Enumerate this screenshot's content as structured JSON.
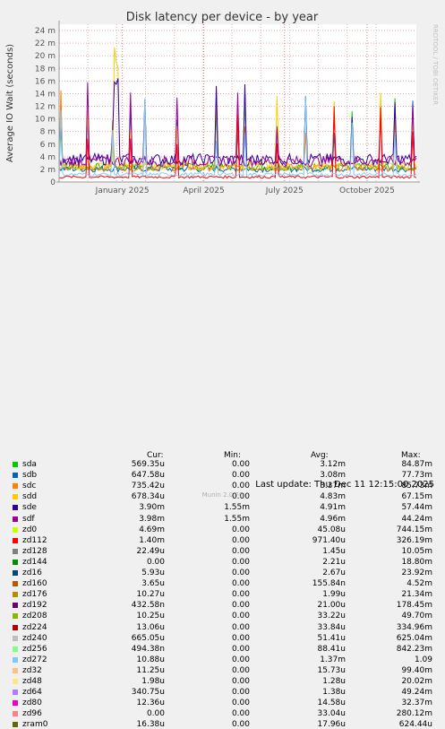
{
  "chart_data": {
    "type": "line",
    "title": "Disk latency per device - by year",
    "ylabel": "Average IO Wait (seconds)",
    "ylim": [
      0,
      25
    ],
    "y_ticks": [
      "0",
      "2 m",
      "4 m",
      "6 m",
      "8 m",
      "10 m",
      "12 m",
      "14 m",
      "16 m",
      "18 m",
      "20 m",
      "22 m",
      "24 m"
    ],
    "x_tick_labels": [
      "January 2025",
      "April 2025",
      "July 2025",
      "October 2025"
    ],
    "watermark": "RRDTOOL / TOBI OETIKER",
    "grid": true,
    "series": [
      {
        "name": "sda",
        "color": "#00cc00",
        "cur": "569.35u",
        "min": "0.00",
        "avg": "3.12m",
        "max": "84.87m"
      },
      {
        "name": "sdb",
        "color": "#0066b3",
        "cur": "647.58u",
        "min": "0.00",
        "avg": "3.08m",
        "max": "77.73m"
      },
      {
        "name": "sdc",
        "color": "#ff8000",
        "cur": "735.42u",
        "min": "0.00",
        "avg": "3.37m",
        "max": "85.73m"
      },
      {
        "name": "sdd",
        "color": "#ffcc00",
        "cur": "678.34u",
        "min": "0.00",
        "avg": "4.83m",
        "max": "67.15m"
      },
      {
        "name": "sde",
        "color": "#330099",
        "cur": "3.90m",
        "min": "1.55m",
        "avg": "4.91m",
        "max": "57.44m"
      },
      {
        "name": "sdf",
        "color": "#990099",
        "cur": "3.98m",
        "min": "1.55m",
        "avg": "4.96m",
        "max": "44.24m"
      },
      {
        "name": "zd0",
        "color": "#ccff00",
        "cur": "4.69m",
        "min": "0.00",
        "avg": "45.08u",
        "max": "744.15m"
      },
      {
        "name": "zd112",
        "color": "#ff0000",
        "cur": "1.40m",
        "min": "0.00",
        "avg": "971.40u",
        "max": "326.19m"
      },
      {
        "name": "zd128",
        "color": "#808080",
        "cur": "22.49u",
        "min": "0.00",
        "avg": "1.45u",
        "max": "10.05m"
      },
      {
        "name": "zd144",
        "color": "#008f00",
        "cur": "0.00",
        "min": "0.00",
        "avg": "2.21u",
        "max": "18.80m"
      },
      {
        "name": "zd16",
        "color": "#00487d",
        "cur": "5.93u",
        "min": "0.00",
        "avg": "2.67u",
        "max": "23.92m"
      },
      {
        "name": "zd160",
        "color": "#b35a00",
        "cur": "3.65u",
        "min": "0.00",
        "avg": "155.84n",
        "max": "4.52m"
      },
      {
        "name": "zd176",
        "color": "#b38f00",
        "cur": "10.27u",
        "min": "0.00",
        "avg": "1.99u",
        "max": "21.34m"
      },
      {
        "name": "zd192",
        "color": "#6b006b",
        "cur": "432.58n",
        "min": "0.00",
        "avg": "21.00u",
        "max": "178.45m"
      },
      {
        "name": "zd208",
        "color": "#8fb300",
        "cur": "10.25u",
        "min": "0.00",
        "avg": "33.22u",
        "max": "49.70m"
      },
      {
        "name": "zd224",
        "color": "#b30000",
        "cur": "13.06u",
        "min": "0.00",
        "avg": "33.84u",
        "max": "334.96m"
      },
      {
        "name": "zd240",
        "color": "#bebebe",
        "cur": "665.05u",
        "min": "0.00",
        "avg": "51.41u",
        "max": "625.04m"
      },
      {
        "name": "zd256",
        "color": "#80ff80",
        "cur": "494.38n",
        "min": "0.00",
        "avg": "88.41u",
        "max": "842.23m"
      },
      {
        "name": "zd272",
        "color": "#80c9ff",
        "cur": "10.88u",
        "min": "0.00",
        "avg": "1.37m",
        "max": "1.09"
      },
      {
        "name": "zd32",
        "color": "#ffc080",
        "cur": "11.25u",
        "min": "0.00",
        "avg": "15.73u",
        "max": "99.40m"
      },
      {
        "name": "zd48",
        "color": "#ffe680",
        "cur": "1.98u",
        "min": "0.00",
        "avg": "1.28u",
        "max": "20.02m"
      },
      {
        "name": "zd64",
        "color": "#aa80ff",
        "cur": "340.75u",
        "min": "0.00",
        "avg": "1.38u",
        "max": "49.24m"
      },
      {
        "name": "zd80",
        "color": "#ee00cc",
        "cur": "12.36u",
        "min": "0.00",
        "avg": "14.58u",
        "max": "32.37m"
      },
      {
        "name": "zd96",
        "color": "#ff8080",
        "cur": "0.00",
        "min": "0.00",
        "avg": "33.04u",
        "max": "280.12m"
      },
      {
        "name": "zram0",
        "color": "#666600",
        "cur": "16.38u",
        "min": "0.00",
        "avg": "17.96u",
        "max": "624.44u"
      }
    ]
  },
  "legend_headers": {
    "cur": "Cur:",
    "min": "Min:",
    "avg": "Avg:",
    "max": "Max:"
  },
  "last_update": "Last update: Thu Dec 11 12:15:00 2025",
  "footer": "Munin 2.0.76"
}
